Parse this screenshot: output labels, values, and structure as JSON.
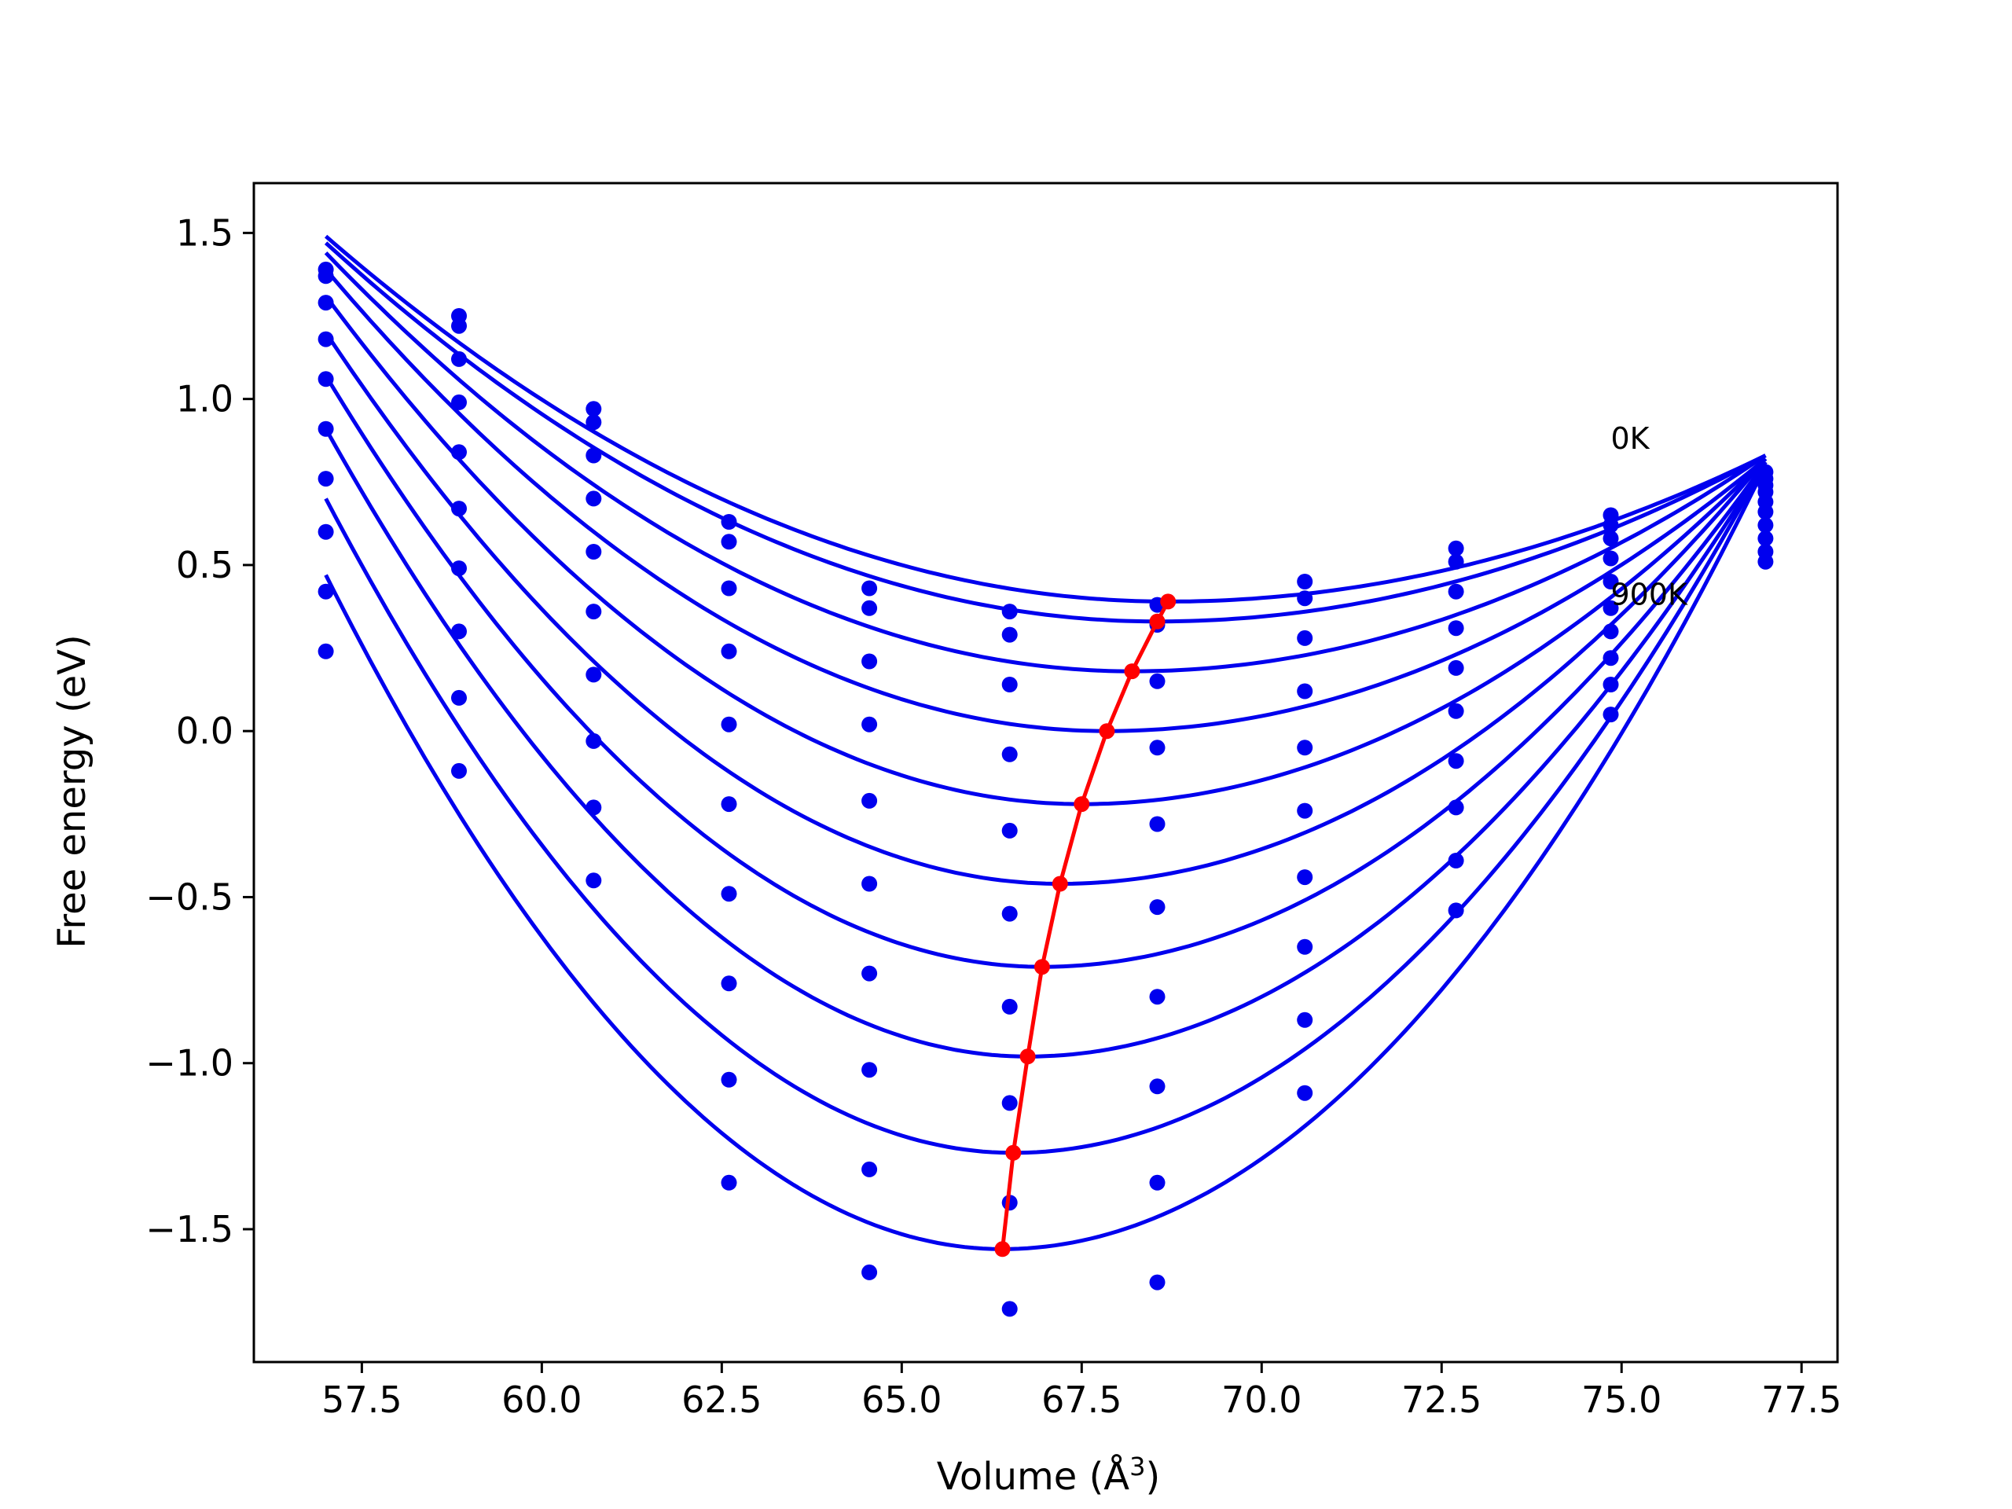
{
  "chart_data": {
    "type": "scatter",
    "title": "",
    "xlabel": "Volume (Å",
    "xlabel_sup": "3",
    "xlabel_close": ")",
    "ylabel": "Free energy (eV)",
    "xlim": [
      56.0,
      78.0
    ],
    "ylim": [
      -1.9,
      1.65
    ],
    "xticks": [
      57.5,
      60.0,
      62.5,
      65.0,
      67.5,
      70.0,
      72.5,
      75.0,
      77.5
    ],
    "xtick_labels": [
      "57.5",
      "60.0",
      "62.5",
      "65.0",
      "67.5",
      "70.0",
      "72.5",
      "75.0",
      "77.5"
    ],
    "yticks": [
      -1.5,
      -1.0,
      -0.5,
      0.0,
      0.5,
      1.0,
      1.5
    ],
    "ytick_labels": [
      "−1.5",
      "−1.0",
      "−0.5",
      "0.0",
      "0.5",
      "1.0",
      "1.5"
    ],
    "grid": false,
    "colors": {
      "curves": "#0000ee",
      "points": "#0000ee",
      "minima": "#ff0000"
    },
    "annotations": [
      {
        "text": "0K",
        "x": 74.85,
        "y": 0.85
      },
      {
        "text": "900K",
        "x": 74.85,
        "y": 0.38
      }
    ],
    "volumes": [
      57.0,
      58.85,
      60.72,
      62.6,
      64.55,
      66.5,
      68.55,
      70.6,
      72.7,
      74.85,
      77.0
    ],
    "curves": [
      {
        "vmin": 68.7,
        "emin": 0.39,
        "f_left": 1.49,
        "f_right": 0.83
      },
      {
        "vmin": 68.55,
        "emin": 0.33,
        "f_left": 1.47,
        "f_right": 0.83
      },
      {
        "vmin": 68.2,
        "emin": 0.18,
        "f_left": 1.44,
        "f_right": 0.83
      },
      {
        "vmin": 67.85,
        "emin": 0.0,
        "f_left": 1.39,
        "f_right": 0.82
      },
      {
        "vmin": 67.5,
        "emin": -0.22,
        "f_left": 1.31,
        "f_right": 0.82
      },
      {
        "vmin": 67.2,
        "emin": -0.46,
        "f_left": 1.2,
        "f_right": 0.82
      },
      {
        "vmin": 66.95,
        "emin": -0.71,
        "f_left": 1.07,
        "f_right": 0.81
      },
      {
        "vmin": 66.75,
        "emin": -0.98,
        "f_left": 0.91,
        "f_right": 0.81
      },
      {
        "vmin": 66.55,
        "emin": -1.27,
        "f_left": 0.7,
        "f_right": 0.81
      },
      {
        "vmin": 66.4,
        "emin": -1.56,
        "f_left": 0.47,
        "f_right": 0.8
      }
    ],
    "points": [
      [
        1.39,
        1.25,
        0.97,
        0.63,
        0.43,
        0.36,
        0.38,
        0.45,
        0.55,
        0.65,
        0.78
      ],
      [
        1.37,
        1.22,
        0.93,
        0.57,
        0.37,
        0.29,
        0.32,
        0.4,
        0.51,
        0.62,
        0.76
      ],
      [
        1.29,
        1.12,
        0.83,
        0.43,
        0.21,
        0.14,
        0.15,
        0.28,
        0.42,
        0.58,
        0.74
      ],
      [
        1.18,
        0.99,
        0.7,
        0.24,
        0.02,
        -0.07,
        -0.05,
        0.12,
        0.31,
        0.52,
        0.72
      ],
      [
        1.06,
        0.84,
        0.54,
        0.02,
        -0.21,
        -0.3,
        -0.28,
        -0.05,
        0.19,
        0.45,
        0.69
      ],
      [
        0.91,
        0.67,
        0.36,
        -0.22,
        -0.46,
        -0.55,
        -0.53,
        -0.24,
        0.06,
        0.37,
        0.66
      ],
      [
        0.76,
        0.49,
        0.17,
        -0.49,
        -0.73,
        -0.83,
        -0.8,
        -0.44,
        -0.09,
        0.3,
        0.62
      ],
      [
        0.6,
        0.3,
        -0.03,
        -0.76,
        -1.02,
        -1.12,
        -1.07,
        -0.65,
        -0.23,
        0.22,
        0.58
      ],
      [
        0.42,
        0.1,
        -0.23,
        -1.05,
        -1.32,
        -1.42,
        -1.36,
        -0.87,
        -0.39,
        0.14,
        0.54
      ],
      [
        0.24,
        -0.12,
        -0.45,
        -1.36,
        -1.63,
        -1.74,
        -1.66,
        -1.09,
        -0.54,
        0.05,
        0.51
      ]
    ],
    "minima_line": [
      [
        68.7,
        0.39
      ],
      [
        68.55,
        0.33
      ],
      [
        68.2,
        0.18
      ],
      [
        67.85,
        0.0
      ],
      [
        67.5,
        -0.22
      ],
      [
        67.2,
        -0.46
      ],
      [
        66.95,
        -0.71
      ],
      [
        66.75,
        -0.98
      ],
      [
        66.55,
        -1.27
      ],
      [
        66.4,
        -1.56
      ]
    ]
  }
}
